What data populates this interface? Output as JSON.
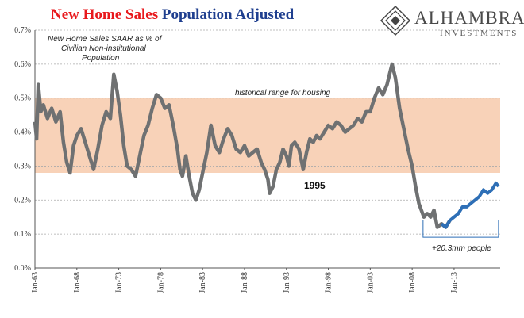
{
  "title": {
    "part1": "New Home Sales",
    "part2": "Population Adjusted"
  },
  "logo": {
    "brand": "ALHAMBRA",
    "sub": "INVESTMENTS"
  },
  "colors": {
    "title_red": "#e8181c",
    "title_blue": "#1f3f8f",
    "band": "#f8d2b8",
    "line_gray": "#6f7172",
    "line_blue": "#2e6fb6"
  },
  "chart_data": {
    "type": "line",
    "annotations": {
      "series_note": [
        "New Home Sales SAAR as % of",
        "Civilian Non-institutional",
        "Population"
      ],
      "band_label": "historical range for housing",
      "label_1995": "1995",
      "people_label": "+20.3mm people"
    },
    "band": [
      0.28,
      0.5
    ],
    "ylim": [
      0,
      0.7
    ],
    "yticks": [
      "0.0%",
      "0.1%",
      "0.2%",
      "0.3%",
      "0.4%",
      "0.5%",
      "0.6%",
      "0.7%"
    ],
    "xlim": [
      1963.0,
      2018.5
    ],
    "xticks": [
      {
        "label": "Jan-63",
        "year": 1963
      },
      {
        "label": "Jan-68",
        "year": 1968
      },
      {
        "label": "Jan-73",
        "year": 1973
      },
      {
        "label": "Jan-78",
        "year": 1978
      },
      {
        "label": "Jan-83",
        "year": 1983
      },
      {
        "label": "Jan-88",
        "year": 1988
      },
      {
        "label": "Jan-93",
        "year": 1993
      },
      {
        "label": "Jan-98",
        "year": 1998
      },
      {
        "label": "Jan-03",
        "year": 2003
      },
      {
        "label": "Jan-08",
        "year": 2008
      },
      {
        "label": "Jan-13",
        "year": 2013
      }
    ],
    "series": [
      {
        "x": [
          1963.0,
          1963.2,
          1963.4,
          1963.7,
          1964.0,
          1964.5,
          1965.0,
          1965.5,
          1966.0,
          1966.4,
          1966.8,
          1967.2,
          1967.6,
          1968.0,
          1968.5,
          1969.0,
          1969.5,
          1970.0,
          1970.5,
          1971.0,
          1971.5,
          1972.0,
          1972.4,
          1972.8,
          1973.2,
          1973.6,
          1974.0,
          1974.5,
          1975.0,
          1975.5,
          1976.0,
          1976.5,
          1977.0,
          1977.5,
          1978.0,
          1978.5,
          1979.0,
          1979.5,
          1980.0,
          1980.3,
          1980.6,
          1981.0,
          1981.4,
          1981.8,
          1982.2,
          1982.6,
          1983.0,
          1983.5,
          1984.0,
          1984.5,
          1985.0,
          1985.5,
          1986.0,
          1986.5,
          1987.0,
          1987.5,
          1988.0,
          1988.5,
          1989.0,
          1989.5,
          1990.0,
          1990.4,
          1990.8,
          1991.0,
          1991.4,
          1991.8,
          1992.2,
          1992.6,
          1993.0,
          1993.3,
          1993.6,
          1994.0,
          1994.5,
          1995.0,
          1995.4,
          1995.8,
          1996.2,
          1996.6,
          1997.0,
          1997.5,
          1998.0,
          1998.5,
          1999.0,
          1999.5,
          2000.0,
          2000.5,
          2001.0,
          2001.5,
          2002.0,
          2002.5,
          2003.0,
          2003.5,
          2004.0,
          2004.5,
          2005.0,
          2005.3,
          2005.6,
          2006.0,
          2006.5,
          2007.0,
          2007.5,
          2008.0,
          2008.4,
          2008.8,
          2009.1,
          2009.4,
          2009.8,
          2010.2,
          2010.6,
          2011.0,
          2011.5,
          2012.0,
          2012.5,
          2013.0,
          2013.5,
          2014.0,
          2014.5,
          2015.0,
          2015.5,
          2016.0,
          2016.5,
          2017.0,
          2017.5,
          2018.0,
          2018.3
        ],
        "y": [
          0.43,
          0.38,
          0.54,
          0.46,
          0.48,
          0.44,
          0.47,
          0.43,
          0.46,
          0.37,
          0.31,
          0.28,
          0.36,
          0.39,
          0.41,
          0.37,
          0.33,
          0.29,
          0.35,
          0.42,
          0.46,
          0.44,
          0.57,
          0.52,
          0.45,
          0.36,
          0.3,
          0.29,
          0.27,
          0.33,
          0.39,
          0.42,
          0.47,
          0.51,
          0.5,
          0.47,
          0.48,
          0.42,
          0.35,
          0.29,
          0.27,
          0.33,
          0.27,
          0.22,
          0.2,
          0.23,
          0.28,
          0.34,
          0.42,
          0.36,
          0.34,
          0.38,
          0.41,
          0.39,
          0.35,
          0.34,
          0.36,
          0.33,
          0.34,
          0.35,
          0.31,
          0.29,
          0.26,
          0.22,
          0.24,
          0.29,
          0.31,
          0.35,
          0.33,
          0.3,
          0.36,
          0.37,
          0.35,
          0.29,
          0.34,
          0.38,
          0.37,
          0.39,
          0.38,
          0.4,
          0.42,
          0.41,
          0.43,
          0.42,
          0.4,
          0.41,
          0.42,
          0.44,
          0.43,
          0.46,
          0.46,
          0.5,
          0.53,
          0.51,
          0.54,
          0.57,
          0.6,
          0.56,
          0.47,
          0.41,
          0.35,
          0.3,
          0.24,
          0.19,
          0.17,
          0.15,
          0.16,
          0.15,
          0.17,
          0.12,
          0.13,
          0.12,
          0.14,
          0.15,
          0.16,
          0.18,
          0.18,
          0.19,
          0.2,
          0.21,
          0.23,
          0.22,
          0.23,
          0.25,
          0.24
        ]
      }
    ]
  }
}
